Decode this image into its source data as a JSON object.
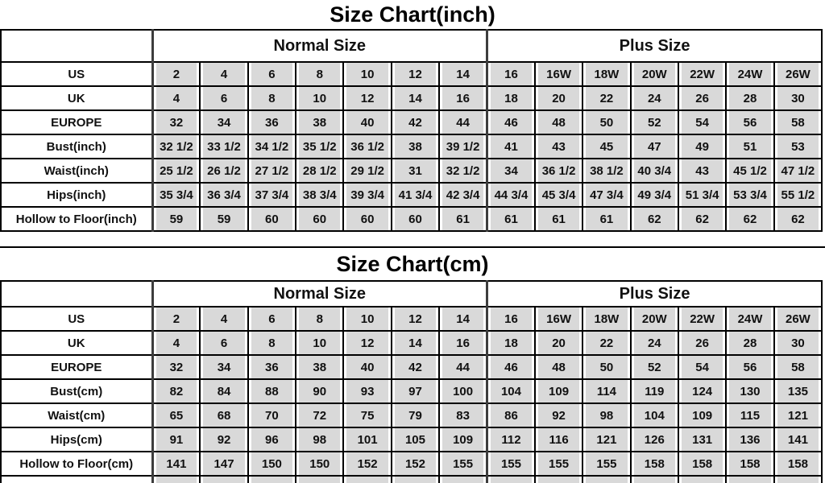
{
  "colors": {
    "background": "#ffffff",
    "value_cell_fill": "#d9d9d9",
    "gridline": "#000000",
    "heavy_separator": "#3d3d3d",
    "text": "#000000"
  },
  "chart_data": [
    {
      "type": "table",
      "title": "Size Chart(inch)",
      "column_groups": [
        "Normal Size",
        "Plus Size"
      ],
      "normal_size_column_count": 7,
      "plus_size_column_count": 7,
      "rows": [
        {
          "label": "US",
          "values": [
            "2",
            "4",
            "6",
            "8",
            "10",
            "12",
            "14",
            "16",
            "16W",
            "18W",
            "20W",
            "22W",
            "24W",
            "26W"
          ]
        },
        {
          "label": "UK",
          "values": [
            "4",
            "6",
            "8",
            "10",
            "12",
            "14",
            "16",
            "18",
            "20",
            "22",
            "24",
            "26",
            "28",
            "30"
          ]
        },
        {
          "label": "EUROPE",
          "values": [
            "32",
            "34",
            "36",
            "38",
            "40",
            "42",
            "44",
            "46",
            "48",
            "50",
            "52",
            "54",
            "56",
            "58"
          ]
        },
        {
          "label": "Bust(inch)",
          "values": [
            "32 1/2",
            "33 1/2",
            "34 1/2",
            "35 1/2",
            "36 1/2",
            "38",
            "39 1/2",
            "41",
            "43",
            "45",
            "47",
            "49",
            "51",
            "53"
          ]
        },
        {
          "label": "Waist(inch)",
          "values": [
            "25 1/2",
            "26 1/2",
            "27 1/2",
            "28 1/2",
            "29 1/2",
            "31",
            "32 1/2",
            "34",
            "36 1/2",
            "38 1/2",
            "40 3/4",
            "43",
            "45 1/2",
            "47 1/2"
          ]
        },
        {
          "label": "Hips(inch)",
          "values": [
            "35 3/4",
            "36 3/4",
            "37 3/4",
            "38 3/4",
            "39 3/4",
            "41 3/4",
            "42 3/4",
            "44 3/4",
            "45 3/4",
            "47 3/4",
            "49 3/4",
            "51 3/4",
            "53 3/4",
            "55 1/2"
          ]
        },
        {
          "label": "Hollow to Floor(inch)",
          "values": [
            "59",
            "59",
            "60",
            "60",
            "60",
            "60",
            "61",
            "61",
            "61",
            "61",
            "62",
            "62",
            "62",
            "62"
          ]
        }
      ],
      "partial_next_row_visible": false
    },
    {
      "type": "table",
      "title": "Size Chart(cm)",
      "column_groups": [
        "Normal Size",
        "Plus Size"
      ],
      "normal_size_column_count": 7,
      "plus_size_column_count": 7,
      "rows": [
        {
          "label": "US",
          "values": [
            "2",
            "4",
            "6",
            "8",
            "10",
            "12",
            "14",
            "16",
            "16W",
            "18W",
            "20W",
            "22W",
            "24W",
            "26W"
          ]
        },
        {
          "label": "UK",
          "values": [
            "4",
            "6",
            "8",
            "10",
            "12",
            "14",
            "16",
            "18",
            "20",
            "22",
            "24",
            "26",
            "28",
            "30"
          ]
        },
        {
          "label": "EUROPE",
          "values": [
            "32",
            "34",
            "36",
            "38",
            "40",
            "42",
            "44",
            "46",
            "48",
            "50",
            "52",
            "54",
            "56",
            "58"
          ]
        },
        {
          "label": "Bust(cm)",
          "values": [
            "82",
            "84",
            "88",
            "90",
            "93",
            "97",
            "100",
            "104",
            "109",
            "114",
            "119",
            "124",
            "130",
            "135"
          ]
        },
        {
          "label": "Waist(cm)",
          "values": [
            "65",
            "68",
            "70",
            "72",
            "75",
            "79",
            "83",
            "86",
            "92",
            "98",
            "104",
            "109",
            "115",
            "121"
          ]
        },
        {
          "label": "Hips(cm)",
          "values": [
            "91",
            "92",
            "96",
            "98",
            "101",
            "105",
            "109",
            "112",
            "116",
            "121",
            "126",
            "131",
            "136",
            "141"
          ]
        },
        {
          "label": "Hollow to Floor(cm)",
          "values": [
            "141",
            "147",
            "150",
            "150",
            "152",
            "152",
            "155",
            "155",
            "155",
            "155",
            "158",
            "158",
            "158",
            "158"
          ]
        }
      ],
      "partial_next_row_visible": true
    }
  ]
}
